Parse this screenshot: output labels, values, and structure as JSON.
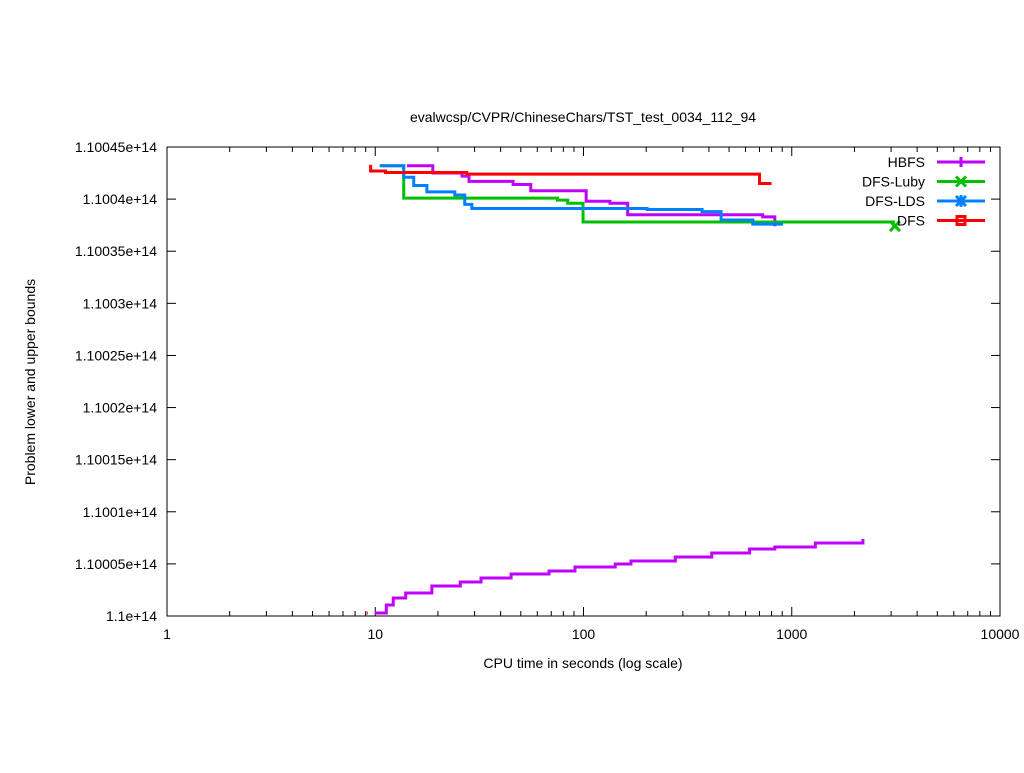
{
  "chart_data": {
    "type": "line",
    "title": "evalwcsp/CVPR/ChineseChars/TST_test_0034_112_94",
    "xlabel": "CPU time in seconds (log scale)",
    "ylabel": "Problem lower and upper bounds",
    "xscale": "log",
    "xlim": [
      1,
      10000
    ],
    "ylim": [
      110000000000000.0,
      110045000000000.0
    ],
    "xticks": [
      {
        "v": 1,
        "label": "1"
      },
      {
        "v": 10,
        "label": "10"
      },
      {
        "v": 100,
        "label": "100"
      },
      {
        "v": 1000,
        "label": "1000"
      },
      {
        "v": 10000,
        "label": "10000"
      }
    ],
    "yticks": [
      {
        "v": 110000000000000.0,
        "label": "1.1e+14"
      },
      {
        "v": 110005000000000.0,
        "label": "1.10005e+14"
      },
      {
        "v": 110010000000000.0,
        "label": "1.1001e+14"
      },
      {
        "v": 110015000000000.0,
        "label": "1.10015e+14"
      },
      {
        "v": 110020000000000.0,
        "label": "1.1002e+14"
      },
      {
        "v": 110025000000000.0,
        "label": "1.10025e+14"
      },
      {
        "v": 110030000000000.0,
        "label": "1.1003e+14"
      },
      {
        "v": 110035000000000.0,
        "label": "1.10035e+14"
      },
      {
        "v": 110040000000000.0,
        "label": "1.1004e+14"
      },
      {
        "v": 110045000000000.0,
        "label": "1.10045e+14"
      }
    ],
    "grid": false,
    "legend_position": "top-right",
    "series": [
      {
        "name": "HBFS",
        "color": "#c000ff",
        "marker": "plus",
        "style": "steps",
        "segments": [
          [
            [
              14.2,
              110043200000000.0
            ],
            [
              18.9,
              110042500000000.0
            ],
            [
              26.1,
              110042200000000.0
            ],
            [
              28.2,
              110041700000000.0
            ],
            [
              45.9,
              110041400000000.0
            ],
            [
              55.8,
              110040800000000.0
            ],
            [
              103,
              110039800000000.0
            ],
            [
              134,
              110039600000000.0
            ],
            [
              163,
              110038500000000.0
            ],
            [
              725,
              110038300000000.0
            ],
            [
              829,
              110037400000000.0
            ]
          ],
          [
            [
              9.97,
              110000290000000.0
            ],
            [
              11.3,
              110001060000000.0
            ],
            [
              12.2,
              110001730000000.0
            ],
            [
              14.0,
              110002210000000.0
            ],
            [
              18.7,
              110002880000000.0
            ],
            [
              25.6,
              110003260000000.0
            ],
            [
              32.2,
              110003650000000.0
            ],
            [
              44.9,
              110004030000000.0
            ],
            [
              68.3,
              110004320000000.0
            ],
            [
              91,
              110004700000000.0
            ],
            [
              142,
              110004990000000.0
            ],
            [
              169,
              110005280000000.0
            ],
            [
              276,
              110005660000000.0
            ],
            [
              413,
              110006040000000.0
            ],
            [
              627,
              110006430000000.0
            ],
            [
              829,
              110006620000000.0
            ],
            [
              1298,
              110007000000000.0
            ],
            [
              2196,
              110007390000000.0
            ]
          ]
        ]
      },
      {
        "name": "DFS-Luby",
        "color": "#00c000",
        "marker": "x",
        "style": "steps",
        "segments": [
          [
            [
              10.7,
              110043200000000.0
            ],
            [
              13.7,
              110042700000000.0
            ],
            [
              13.7,
              110040100000000.0
            ],
            [
              75,
              110039900000000.0
            ],
            [
              84,
              110039600000000.0
            ],
            [
              99.5,
              110037800000000.0
            ],
            [
              3130,
              110037800000000.0
            ]
          ]
        ]
      },
      {
        "name": "DFS-LDS",
        "color": "#0080ff",
        "marker": "star",
        "style": "steps",
        "segments": [
          [
            [
              10.5,
              110043200000000.0
            ],
            [
              13.7,
              110042100000000.0
            ],
            [
              15.3,
              110041300000000.0
            ],
            [
              17.7,
              110040700000000.0
            ],
            [
              24.1,
              110040400000000.0
            ],
            [
              26.9,
              110039500000000.0
            ],
            [
              29.1,
              110039100000000.0
            ],
            [
              202,
              110039000000000.0
            ],
            [
              371,
              110038800000000.0
            ],
            [
              458,
              110038000000000.0
            ],
            [
              650,
              110037600000000.0
            ],
            [
              908,
              110037600000000.0
            ]
          ]
        ]
      },
      {
        "name": "DFS",
        "color": "#ff0000",
        "marker": "square",
        "style": "steps",
        "segments": [
          [
            [
              9.5,
              110043300000000.0
            ],
            [
              9.5,
              110042700000000.0
            ],
            [
              11.2,
              110042550000000.0
            ],
            [
              27.5,
              110042400000000.0
            ],
            [
              700,
              110041500000000.0
            ],
            [
              800,
              110041500000000.0
            ]
          ],
          [
            [
              9.1,
              110000290000000.0
            ],
            [
              9.2,
              110000290000000.0
            ]
          ]
        ]
      }
    ]
  }
}
